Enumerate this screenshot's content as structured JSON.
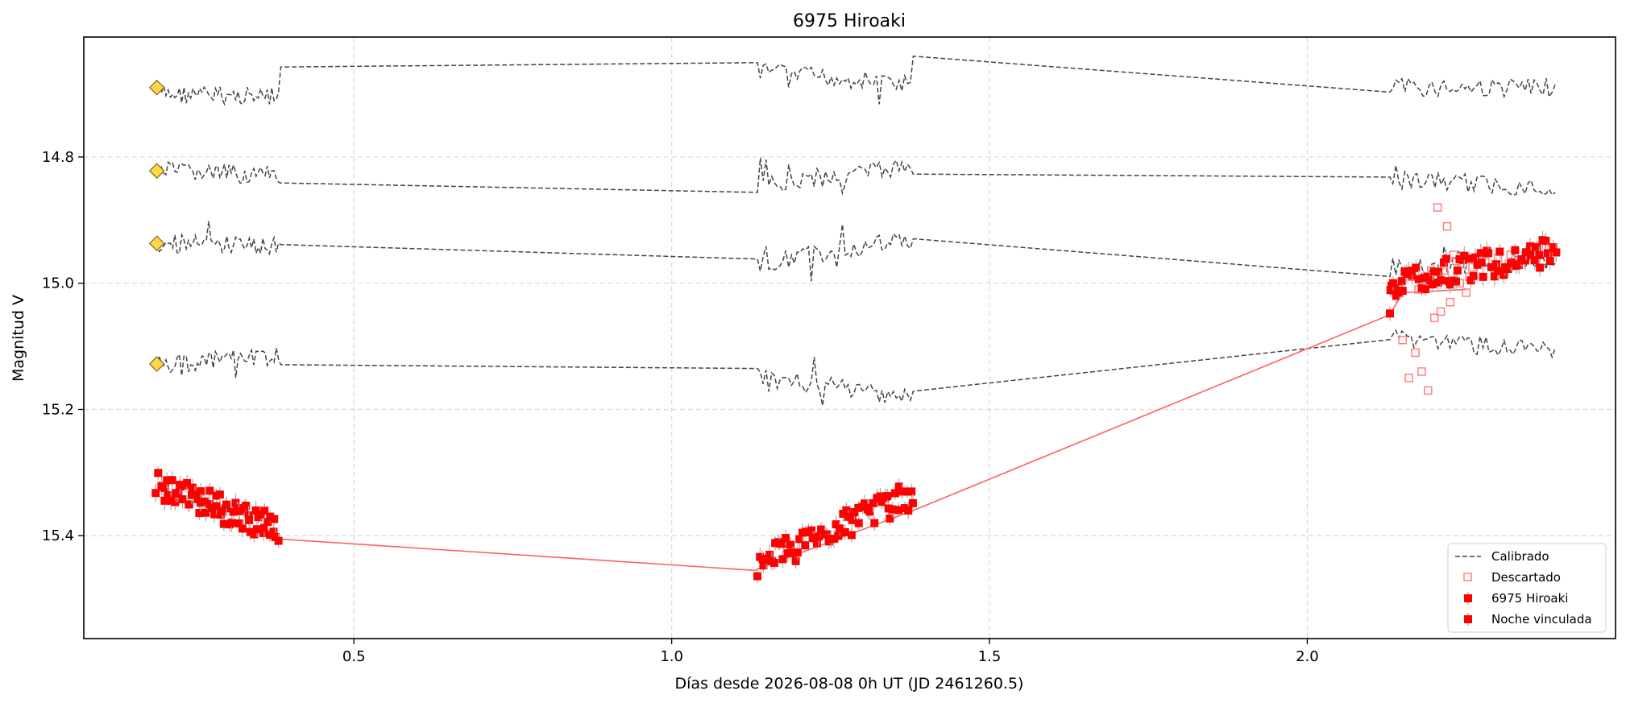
{
  "chart_data": {
    "type": "scatter",
    "title": "6975 Hiroaki",
    "xlabel": "Días desde 2026-08-08 0h UT (JD 2461260.5)",
    "ylabel": "Magnitud V",
    "xlim": [
      0.075,
      2.485
    ],
    "ylim": [
      15.563,
      14.61
    ],
    "y_inverted": true,
    "xticks": [
      0.5,
      1.0,
      1.5,
      2.0
    ],
    "xtick_labels": [
      "0.5",
      "1.0",
      "1.5",
      "2.0"
    ],
    "yticks": [
      14.8,
      15.0,
      15.2,
      15.4
    ],
    "ytick_labels": [
      "14.8",
      "15.0",
      "15.2",
      "15.4"
    ],
    "grid": true,
    "legend_position": "lower-right",
    "legend": [
      "Calibrado",
      "Descartado",
      "6975 Hiroaki",
      "Noche vinculada"
    ],
    "colors": {
      "calibrated": "#444444",
      "discarded": "#ff8080",
      "target": "#ff0000",
      "link": "#ff6060",
      "errorbar": "#aaaaaa",
      "comparison_marker": "#ffd54a"
    },
    "comparison_stars": [
      {
        "name": "comp1",
        "start_mag": 14.69,
        "segments": [
          {
            "x": [
              0.19,
              0.385
            ],
            "y": [
              14.7,
              14.705
            ]
          },
          {
            "x": [
              1.135,
              1.38
            ],
            "y": [
              14.665,
              14.685
            ]
          },
          {
            "x": [
              2.13,
              2.39
            ],
            "y": [
              14.69,
              14.69
            ]
          }
        ],
        "jumps": [
          [
            0.385,
            14.715
          ],
          [
            1.135,
            14.67
          ],
          [
            1.38,
            14.685
          ],
          [
            2.13,
            14.695
          ]
        ]
      },
      {
        "name": "comp2",
        "start_mag": 14.822,
        "segments": [
          {
            "x": [
              0.19,
              0.385
            ],
            "y": [
              14.822,
              14.83
            ]
          },
          {
            "x": [
              1.135,
              1.38
            ],
            "y": [
              14.845,
              14.815
            ]
          },
          {
            "x": [
              2.13,
              2.39
            ],
            "y": [
              14.835,
              14.85
            ]
          }
        ],
        "jumps": [
          [
            0.385,
            14.84
          ],
          [
            1.135,
            14.815
          ],
          [
            1.38,
            14.825
          ],
          [
            2.13,
            14.86
          ]
        ]
      },
      {
        "name": "comp3",
        "start_mag": 14.937,
        "segments": [
          {
            "x": [
              0.19,
              0.385
            ],
            "y": [
              14.937,
              14.94
            ]
          },
          {
            "x": [
              1.135,
              1.38
            ],
            "y": [
              14.97,
              14.93
            ]
          },
          {
            "x": [
              2.13,
              2.39
            ],
            "y": [
              14.975,
              14.965
            ]
          }
        ],
        "jumps": [
          [
            0.385,
            14.93
          ],
          [
            1.135,
            14.935
          ],
          [
            1.38,
            14.915
          ],
          [
            2.13,
            14.99
          ]
        ]
      },
      {
        "name": "comp4",
        "start_mag": 15.128,
        "segments": [
          {
            "x": [
              0.19,
              0.385
            ],
            "y": [
              15.13,
              15.115
            ]
          },
          {
            "x": [
              1.135,
              1.38
            ],
            "y": [
              15.15,
              15.18
            ]
          },
          {
            "x": [
              2.13,
              2.39
            ],
            "y": [
              15.085,
              15.11
            ]
          }
        ],
        "jumps": [
          [
            0.385,
            15.09
          ],
          [
            1.135,
            15.155
          ],
          [
            1.38,
            15.185
          ],
          [
            2.13,
            15.06
          ]
        ]
      }
    ],
    "target_segments": [
      {
        "x": [
          0.19,
          0.38
        ],
        "y": [
          15.32,
          15.39
        ]
      },
      {
        "x": [
          1.135,
          1.38
        ],
        "y": [
          15.445,
          15.335
        ]
      },
      {
        "x": [
          2.13,
          2.39
        ],
        "y": [
          15.0,
          14.95
        ]
      }
    ],
    "target_extra_points": [
      {
        "x": 2.13,
        "y": 15.048
      },
      {
        "x": 2.135,
        "y": 15.0
      },
      {
        "x": 2.14,
        "y": 15.02
      },
      {
        "x": 2.145,
        "y": 15.015
      },
      {
        "x": 2.15,
        "y": 15.012
      }
    ],
    "link_line": {
      "x": [
        0.38,
        1.13,
        1.38,
        2.13,
        2.15,
        2.25
      ],
      "y": [
        15.405,
        15.455,
        15.36,
        15.05,
        15.015,
        15.01
      ]
    },
    "discarded_points": [
      {
        "x": 2.15,
        "y": 15.09
      },
      {
        "x": 2.16,
        "y": 15.15
      },
      {
        "x": 2.165,
        "y": 14.99
      },
      {
        "x": 2.17,
        "y": 15.11
      },
      {
        "x": 2.175,
        "y": 15.01
      },
      {
        "x": 2.18,
        "y": 15.14
      },
      {
        "x": 2.185,
        "y": 14.99
      },
      {
        "x": 2.19,
        "y": 15.17
      },
      {
        "x": 2.195,
        "y": 14.98
      },
      {
        "x": 2.2,
        "y": 15.055
      },
      {
        "x": 2.205,
        "y": 14.88
      },
      {
        "x": 2.21,
        "y": 15.045
      },
      {
        "x": 2.215,
        "y": 14.98
      },
      {
        "x": 2.22,
        "y": 14.91
      },
      {
        "x": 2.225,
        "y": 15.03
      },
      {
        "x": 2.23,
        "y": 14.955
      },
      {
        "x": 2.235,
        "y": 14.965
      },
      {
        "x": 2.24,
        "y": 15.0
      },
      {
        "x": 2.245,
        "y": 14.97
      },
      {
        "x": 2.25,
        "y": 15.015
      },
      {
        "x": 2.255,
        "y": 14.99
      },
      {
        "x": 2.26,
        "y": 14.975
      },
      {
        "x": 2.28,
        "y": 14.965
      },
      {
        "x": 2.3,
        "y": 14.96
      },
      {
        "x": 2.32,
        "y": 14.955
      },
      {
        "x": 2.35,
        "y": 14.95
      },
      {
        "x": 2.38,
        "y": 14.945
      }
    ]
  }
}
